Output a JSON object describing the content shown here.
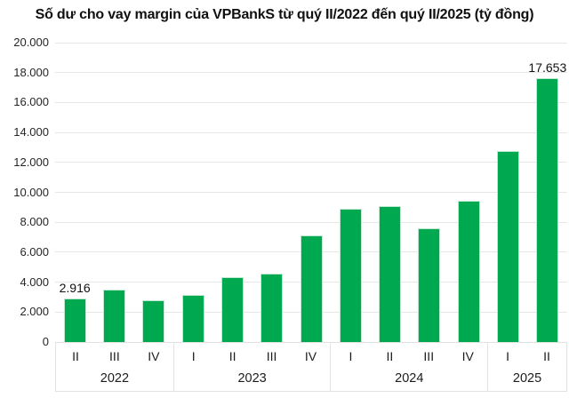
{
  "title": "Số dư cho vay margin của VPBankS từ quý II/2022 đến quý II/2025 (tỷ đồng)",
  "chart_data": {
    "type": "bar",
    "title": "Số dư cho vay margin của VPBankS từ quý II/2022 đến quý II/2025 (tỷ đồng)",
    "categories": [
      "II",
      "III",
      "IV",
      "I",
      "II",
      "III",
      "IV",
      "I",
      "II",
      "III",
      "IV",
      "I",
      "II"
    ],
    "groups": [
      {
        "year": "2022",
        "quarters": [
          "II",
          "III",
          "IV"
        ]
      },
      {
        "year": "2023",
        "quarters": [
          "I",
          "II",
          "III",
          "IV"
        ]
      },
      {
        "year": "2024",
        "quarters": [
          "I",
          "II",
          "III",
          "IV"
        ]
      },
      {
        "year": "2025",
        "quarters": [
          "I",
          "II"
        ]
      }
    ],
    "values": [
      2916,
      3500,
      2800,
      3120,
      4320,
      4600,
      7100,
      8900,
      9080,
      7600,
      9450,
      12780,
      17653
    ],
    "data_labels": [
      {
        "index": 0,
        "text": "2.916"
      },
      {
        "index": 12,
        "text": "17.653"
      }
    ],
    "ylabel": "",
    "xlabel": "",
    "ylim": [
      0,
      20000
    ],
    "ytick_step": 2000,
    "ytick_labels": [
      "0",
      "2.000",
      "4.000",
      "6.000",
      "8.000",
      "10.000",
      "12.000",
      "14.000",
      "16.000",
      "18.000",
      "20.000"
    ],
    "bar_color": "#00a94f",
    "grid_color": "#e7e7e7",
    "grid": true,
    "legend": false
  }
}
